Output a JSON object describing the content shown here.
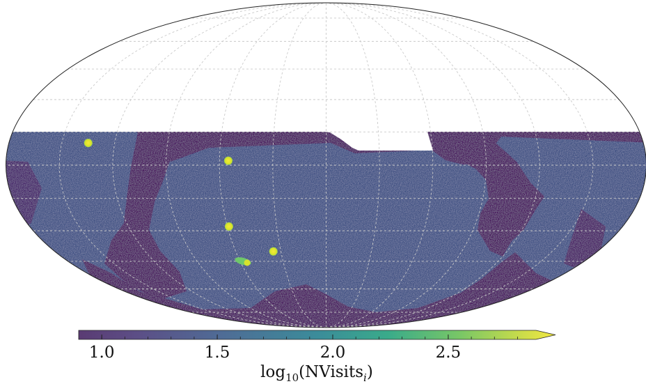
{
  "chart_data": {
    "type": "heatmap",
    "title": "",
    "projection": "mollweide",
    "grid": true,
    "survey_coverage": {
      "dec_range_deg": [
        -90,
        30
      ],
      "low_coverage_color": "#45085a"
    },
    "colorbar": {
      "orientation": "horizontal",
      "placement": "bottom",
      "range": [
        0.9,
        2.88
      ],
      "extend": "max",
      "ticks": [
        1.0,
        1.5,
        2.0,
        2.5
      ],
      "tick_labels": [
        "1.0",
        "1.5",
        "2.0",
        "2.5"
      ],
      "label": {
        "prefix": "log",
        "base": "10",
        "open": "(NVisits",
        "subscript": "i",
        "close": ")"
      }
    },
    "hotspots": [
      {
        "ra_deg": 135,
        "dec_deg": 10,
        "log10_nvisits": 2.85
      },
      {
        "ra_deg": 55,
        "dec_deg": 2,
        "log10_nvisits": 2.85
      },
      {
        "ra_deg": 59,
        "dec_deg": -28,
        "log10_nvisits": 2.8
      },
      {
        "ra_deg": 58,
        "dec_deg": -45,
        "log10_nvisits": 2.6
      },
      {
        "ra_deg": 35,
        "dec_deg": -40,
        "log10_nvisits": 2.85
      }
    ]
  }
}
